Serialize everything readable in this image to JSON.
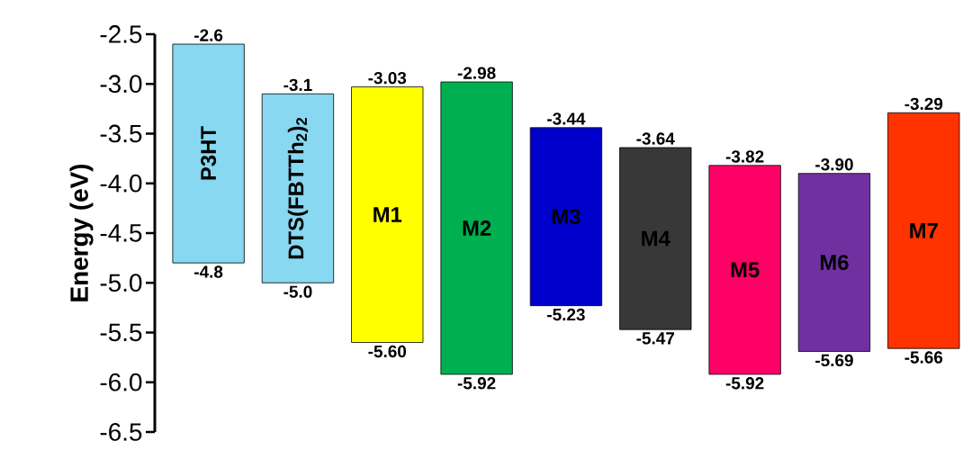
{
  "chart_data": {
    "type": "bar",
    "ylabel": "Energy (eV)",
    "categories": [
      "P3HT",
      "DTS(FBTTh$_{2}$)$_{2}$",
      "M1",
      "M2",
      "M3",
      "M4",
      "M5",
      "M6",
      "M7"
    ],
    "base": [
      -4.8,
      -5.0,
      -5.6,
      -5.92,
      -5.23,
      -5.47,
      -5.92,
      -5.69,
      -5.66
    ],
    "values": [
      2.2,
      1.9,
      2.57,
      2.94,
      1.79,
      1.83,
      2.1,
      1.79,
      2.37
    ],
    "colors": [
      "#87d8f0",
      "#87d8f0",
      "#ffff00",
      "#00b050",
      "#0000cc",
      "#383838",
      "#ff0066",
      "#7030a0",
      "#ff3300"
    ],
    "ylim": [
      -6.5,
      -2.5
    ],
    "yticks": [
      {
        "value": -2.5,
        "label": "-2.5"
      },
      {
        "value": -3.0,
        "label": "-3.0"
      },
      {
        "value": -3.5,
        "label": "-3.5"
      },
      {
        "value": -4.0,
        "label": "-4.0"
      },
      {
        "value": -4.5,
        "label": "-4.5"
      },
      {
        "value": -5.0,
        "label": "-5.0"
      },
      {
        "value": -5.5,
        "label": "-5.5"
      },
      {
        "value": -6.0,
        "label": "-6.0"
      },
      {
        "value": -6.5,
        "label": "-6.5"
      }
    ],
    "annotations": [
      {
        "text": "-2.6",
        "x": "P3HT",
        "y": -2.6
      },
      {
        "text": "-4.8",
        "x": "P3HT",
        "y": -4.8
      },
      {
        "text": "-3.1",
        "x": "DTS(FBTTh$_{2}$)$_{2}$",
        "y": -3.1
      },
      {
        "text": "-5.0",
        "x": "DTS(FBTTh$_{2}$)$_{2}$",
        "y": -5.0
      },
      {
        "text": "-3.03",
        "x": "M1",
        "y": -3.03
      },
      {
        "text": "-5.60",
        "x": "M1",
        "y": -5.6
      },
      {
        "text": "-2.98",
        "x": "M2",
        "y": -2.98
      },
      {
        "text": "-5.92",
        "x": "M2",
        "y": -5.92
      },
      {
        "text": "-3.44",
        "x": "M3",
        "y": -3.44
      },
      {
        "text": "-5.23",
        "x": "M3",
        "y": -5.23
      },
      {
        "text": "-3.64",
        "x": "M4",
        "y": -3.64
      },
      {
        "text": "-5.47",
        "x": "M4",
        "y": -5.47
      },
      {
        "text": "-3.82",
        "x": "M5",
        "y": -3.82
      },
      {
        "text": "-5.92",
        "x": "M5",
        "y": -5.92
      },
      {
        "text": "-3.90",
        "x": "M6",
        "y": -3.9
      },
      {
        "text": "-5.69",
        "x": "M6",
        "y": -5.69
      },
      {
        "text": "-3.29",
        "x": "M7",
        "y": -3.29
      },
      {
        "text": "-5.66",
        "x": "M7",
        "y": -5.66
      }
    ]
  }
}
